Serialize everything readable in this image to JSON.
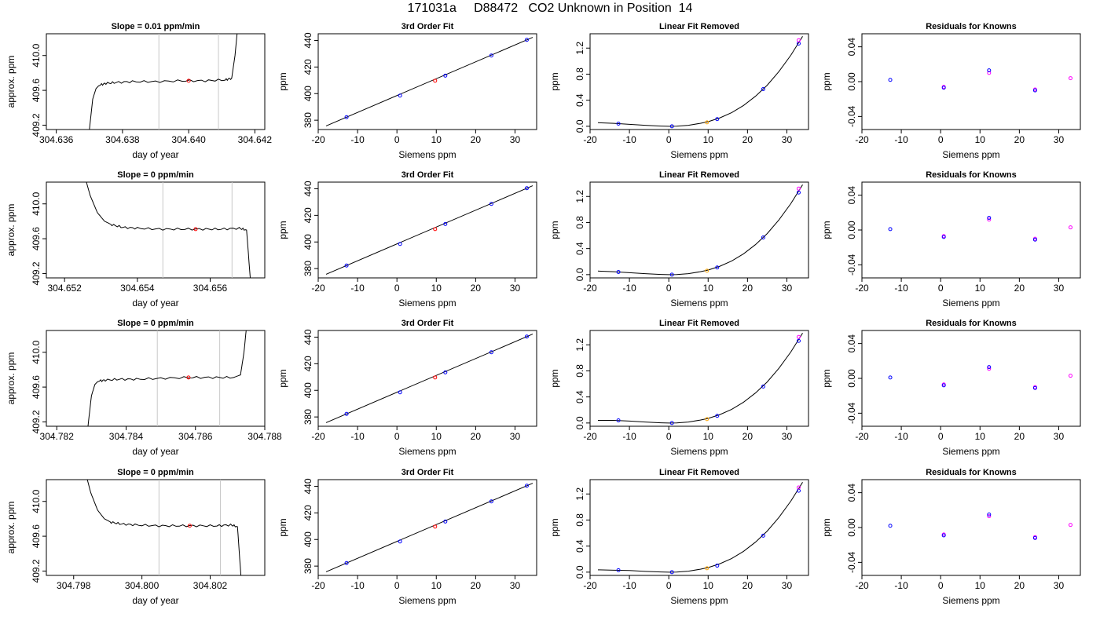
{
  "title": "171031a     D88472   CO2 Unknown in Position  14",
  "colors": {
    "knowns": "#0000ff",
    "knowns_alt": "#ff00ff",
    "unknown": "#ff0000",
    "unknown_alt": "#ffa500",
    "fit_line": "#000000",
    "window_lines": "#c8c8c8"
  },
  "chart_data": [
    {
      "row": 1,
      "type": "line",
      "title": "Slope =  0.01  ppm/min",
      "xlabel": "day of year",
      "ylabel": "approx. ppm",
      "xlim": [
        304.6357,
        304.6423
      ],
      "ylim": [
        409.15,
        410.25
      ],
      "xticks": [
        "304.636",
        "304.638",
        "304.640",
        "304.642"
      ],
      "yticks": [
        "409.2",
        "409.6",
        "410.0"
      ],
      "x": [
        304.637,
        304.6371,
        304.6372,
        304.6373,
        304.6375,
        304.6378,
        304.6383,
        304.639,
        304.6398,
        304.6405,
        304.6411,
        304.6413,
        304.6414,
        304.6415
      ],
      "y": [
        409.15,
        409.5,
        409.62,
        409.66,
        409.68,
        409.69,
        409.7,
        409.7,
        409.71,
        409.71,
        409.72,
        409.74,
        410.0,
        410.4
      ],
      "window": [
        304.6391,
        304.6409
      ],
      "point": {
        "x": 304.64,
        "y": 409.71
      }
    },
    {
      "row": 2,
      "type": "line",
      "title": "Slope =  0  ppm/min",
      "xlabel": "day of year",
      "ylabel": "approx. ppm",
      "xlim": [
        304.6515,
        304.6575
      ],
      "ylim": [
        409.15,
        410.25
      ],
      "xticks": [
        "304.652",
        "304.654",
        "304.656"
      ],
      "yticks": [
        "409.2",
        "409.6",
        "410.0"
      ],
      "x": [
        304.6525,
        304.6527,
        304.6529,
        304.6531,
        304.6533,
        304.6536,
        304.654,
        304.6546,
        304.6552,
        304.6558,
        304.6563,
        304.6568,
        304.657,
        304.6571
      ],
      "y": [
        410.4,
        410.1,
        409.9,
        409.8,
        409.76,
        409.73,
        409.72,
        409.71,
        409.71,
        409.71,
        409.71,
        409.72,
        409.7,
        409.15
      ],
      "window": [
        304.6547,
        304.6566
      ],
      "point": {
        "x": 304.6556,
        "y": 409.71
      }
    },
    {
      "row": 3,
      "type": "line",
      "title": "Slope =  0  ppm/min",
      "xlabel": "day of year",
      "ylabel": "approx. ppm",
      "xlim": [
        304.7817,
        304.788
      ],
      "ylim": [
        409.15,
        410.25
      ],
      "xticks": [
        "304.782",
        "304.784",
        "304.786",
        "304.788"
      ],
      "yticks": [
        "409.2",
        "409.6",
        "410.0"
      ],
      "x": [
        304.7829,
        304.783,
        304.7831,
        304.7832,
        304.7834,
        304.7838,
        304.7843,
        304.785,
        304.7858,
        304.7865,
        304.7871,
        304.7873,
        304.7874,
        304.7875
      ],
      "y": [
        409.15,
        409.5,
        409.63,
        409.67,
        409.68,
        409.69,
        409.69,
        409.7,
        409.71,
        409.71,
        409.71,
        409.74,
        410.0,
        410.4
      ],
      "window": [
        304.7849,
        304.7867
      ],
      "point": {
        "x": 304.7858,
        "y": 409.71
      }
    },
    {
      "row": 4,
      "type": "line",
      "title": "Slope =  0  ppm/min",
      "xlabel": "day of year",
      "ylabel": "approx. ppm",
      "xlim": [
        304.7972,
        304.8036
      ],
      "ylim": [
        409.15,
        410.25
      ],
      "xticks": [
        "304.798",
        "304.800",
        "304.802"
      ],
      "yticks": [
        "409.2",
        "409.6",
        "410.0"
      ],
      "x": [
        304.7983,
        304.7985,
        304.7987,
        304.7989,
        304.7991,
        304.7994,
        304.7998,
        304.8004,
        304.801,
        304.8016,
        304.8022,
        304.8026,
        304.8028,
        304.8029
      ],
      "y": [
        410.4,
        410.1,
        409.9,
        409.8,
        409.76,
        409.74,
        409.73,
        409.72,
        409.72,
        409.72,
        409.72,
        409.73,
        409.71,
        409.15
      ],
      "window": [
        304.8005,
        304.8023
      ],
      "point": {
        "x": 304.8014,
        "y": 409.72
      }
    },
    {
      "row": 1,
      "type": "scatter",
      "title": "3rd Order Fit",
      "xlabel": "Siemens ppm",
      "ylabel": "ppm",
      "xlim": [
        -20,
        35.5
      ],
      "ylim": [
        373,
        445
      ],
      "xticks": [
        "-20",
        "-10",
        "0",
        "10",
        "20",
        "30"
      ],
      "yticks": [
        "380",
        "400",
        "420",
        "440"
      ],
      "knowns": {
        "x": [
          -12.8,
          0.8,
          12.3,
          24.0,
          33.0
        ],
        "y": [
          382.3,
          398.5,
          413.5,
          428.6,
          440.4
        ]
      },
      "unknown": {
        "x": [
          9.7
        ],
        "y": [
          409.7
        ]
      },
      "fit_range": [
        -18,
        34.5
      ]
    },
    {
      "row": 2,
      "type": "scatter",
      "title": "3rd Order Fit",
      "xlabel": "Siemens ppm",
      "ylabel": "ppm",
      "xlim": [
        -20,
        35.5
      ],
      "ylim": [
        373,
        445
      ],
      "xticks": [
        "-20",
        "-10",
        "0",
        "10",
        "20",
        "30"
      ],
      "yticks": [
        "380",
        "400",
        "420",
        "440"
      ],
      "knowns": {
        "x": [
          -12.8,
          0.8,
          12.3,
          24.0,
          33.0
        ],
        "y": [
          382.3,
          398.5,
          413.5,
          428.6,
          440.4
        ]
      },
      "unknown": {
        "x": [
          9.7
        ],
        "y": [
          409.7
        ]
      },
      "fit_range": [
        -18,
        34.5
      ]
    },
    {
      "row": 3,
      "type": "scatter",
      "title": "3rd Order Fit",
      "xlabel": "Siemens ppm",
      "ylabel": "ppm",
      "xlim": [
        -20,
        35.5
      ],
      "ylim": [
        373,
        445
      ],
      "xticks": [
        "-20",
        "-10",
        "0",
        "10",
        "20",
        "30"
      ],
      "yticks": [
        "380",
        "400",
        "420",
        "440"
      ],
      "knowns": {
        "x": [
          -12.8,
          0.8,
          12.3,
          24.0,
          33.0
        ],
        "y": [
          382.3,
          398.5,
          413.5,
          428.6,
          440.4
        ]
      },
      "unknown": {
        "x": [
          9.7
        ],
        "y": [
          409.7
        ]
      },
      "fit_range": [
        -18,
        34.5
      ]
    },
    {
      "row": 4,
      "type": "scatter",
      "title": "3rd Order Fit",
      "xlabel": "Siemens ppm",
      "ylabel": "ppm",
      "xlim": [
        -20,
        35.5
      ],
      "ylim": [
        373,
        445
      ],
      "xticks": [
        "-20",
        "-10",
        "0",
        "10",
        "20",
        "30"
      ],
      "yticks": [
        "380",
        "400",
        "420",
        "440"
      ],
      "knowns": {
        "x": [
          -12.8,
          0.8,
          12.3,
          24.0,
          33.0
        ],
        "y": [
          382.3,
          398.5,
          413.5,
          428.6,
          440.4
        ]
      },
      "unknown": {
        "x": [
          9.7
        ],
        "y": [
          409.7
        ]
      },
      "fit_range": [
        -18,
        34.5
      ]
    },
    {
      "row": 1,
      "type": "scatter",
      "title": "Linear Fit Removed",
      "xlabel": "Siemens ppm",
      "ylabel": "ppm",
      "xlim": [
        -20,
        35.5
      ],
      "ylim": [
        -0.05,
        1.42
      ],
      "xticks": [
        "-20",
        "-10",
        "0",
        "10",
        "20",
        "30"
      ],
      "yticks": [
        "0.0",
        "0.4",
        "0.8",
        "1.2"
      ],
      "knowns": {
        "x": [
          -12.8,
          0.8,
          12.3,
          24.0,
          33.0,
          33.0
        ],
        "y": [
          0.04,
          0.0,
          0.11,
          0.57,
          1.27,
          1.32
        ]
      },
      "unknown": {
        "x": [
          9.7
        ],
        "y": [
          0.06
        ]
      },
      "curve": {
        "x": [
          -18,
          -14,
          -10,
          -6,
          -2,
          0,
          2,
          5,
          8,
          10,
          13,
          16,
          19,
          22,
          25,
          28,
          31,
          34
        ],
        "y": [
          0.055,
          0.045,
          0.03,
          0.015,
          0.003,
          0.0,
          0.002,
          0.015,
          0.045,
          0.07,
          0.13,
          0.21,
          0.32,
          0.46,
          0.63,
          0.84,
          1.09,
          1.38
        ]
      }
    },
    {
      "row": 2,
      "type": "scatter",
      "title": "Linear Fit Removed",
      "xlabel": "Siemens ppm",
      "ylabel": "ppm",
      "xlim": [
        -20,
        35.5
      ],
      "ylim": [
        -0.05,
        1.42
      ],
      "xticks": [
        "-20",
        "-10",
        "0",
        "10",
        "20",
        "30"
      ],
      "yticks": [
        "0.0",
        "0.4",
        "0.8",
        "1.2"
      ],
      "knowns": {
        "x": [
          -12.8,
          0.8,
          12.3,
          24.0,
          33.0,
          33.0
        ],
        "y": [
          0.04,
          0.0,
          0.11,
          0.57,
          1.26,
          1.32
        ]
      },
      "unknown": {
        "x": [
          9.7
        ],
        "y": [
          0.06
        ]
      },
      "curve": {
        "x": [
          -18,
          -14,
          -10,
          -6,
          -2,
          0,
          2,
          5,
          8,
          10,
          13,
          16,
          19,
          22,
          25,
          28,
          31,
          34
        ],
        "y": [
          0.055,
          0.045,
          0.03,
          0.015,
          0.003,
          0.0,
          0.002,
          0.015,
          0.045,
          0.07,
          0.13,
          0.21,
          0.32,
          0.46,
          0.63,
          0.84,
          1.09,
          1.38
        ]
      }
    },
    {
      "row": 3,
      "type": "scatter",
      "title": "Linear Fit Removed",
      "xlabel": "Siemens ppm",
      "ylabel": "ppm",
      "xlim": [
        -20,
        35.5
      ],
      "ylim": [
        -0.05,
        1.42
      ],
      "xticks": [
        "-20",
        "-10",
        "0",
        "10",
        "20",
        "30"
      ],
      "yticks": [
        "0.0",
        "0.4",
        "0.8",
        "1.2"
      ],
      "knowns": {
        "x": [
          -12.8,
          0.8,
          12.3,
          24.0,
          33.0,
          33.0
        ],
        "y": [
          0.04,
          0.0,
          0.11,
          0.56,
          1.26,
          1.32
        ]
      },
      "unknown": {
        "x": [
          9.7
        ],
        "y": [
          0.06
        ]
      },
      "curve": {
        "x": [
          -18,
          -14,
          -10,
          -6,
          -2,
          0,
          2,
          5,
          8,
          10,
          13,
          16,
          19,
          22,
          25,
          28,
          31,
          34
        ],
        "y": [
          0.04,
          0.04,
          0.03,
          0.015,
          0.003,
          0.0,
          0.002,
          0.015,
          0.045,
          0.07,
          0.13,
          0.21,
          0.32,
          0.46,
          0.63,
          0.84,
          1.09,
          1.38
        ]
      }
    },
    {
      "row": 4,
      "type": "scatter",
      "title": "Linear Fit Removed",
      "xlabel": "Siemens ppm",
      "ylabel": "ppm",
      "xlim": [
        -20,
        35.5
      ],
      "ylim": [
        -0.05,
        1.42
      ],
      "xticks": [
        "-20",
        "-10",
        "0",
        "10",
        "20",
        "30"
      ],
      "yticks": [
        "0.0",
        "0.4",
        "0.8",
        "1.2"
      ],
      "knowns": {
        "x": [
          -12.8,
          0.8,
          12.3,
          24.0,
          33.0,
          33.0
        ],
        "y": [
          0.03,
          0.0,
          0.1,
          0.56,
          1.25,
          1.3
        ]
      },
      "unknown": {
        "x": [
          9.7
        ],
        "y": [
          0.06
        ]
      },
      "curve": {
        "x": [
          -18,
          -14,
          -10,
          -6,
          -2,
          0,
          2,
          5,
          8,
          10,
          13,
          16,
          19,
          22,
          25,
          28,
          31,
          34
        ],
        "y": [
          0.035,
          0.03,
          0.025,
          0.012,
          0.003,
          0.0,
          0.002,
          0.015,
          0.045,
          0.07,
          0.13,
          0.21,
          0.32,
          0.46,
          0.63,
          0.84,
          1.09,
          1.38
        ]
      }
    },
    {
      "row": 1,
      "type": "scatter",
      "title": "Residuals for Knowns",
      "xlabel": "Siemens ppm",
      "ylabel": "ppm",
      "xlim": [
        -20,
        35.5
      ],
      "ylim": [
        -0.055,
        0.055
      ],
      "xticks": [
        "-20",
        "-10",
        "0",
        "10",
        "20",
        "30"
      ],
      "yticks": [
        "-0.04",
        "0.00",
        "0.04"
      ],
      "knowns": {
        "x": [
          -12.8,
          0.8,
          0.8,
          12.3,
          12.3,
          24.0,
          24.0,
          33.0
        ],
        "y": [
          0.002,
          -0.006,
          -0.007,
          0.01,
          0.013,
          -0.009,
          -0.01,
          0.004
        ]
      }
    },
    {
      "row": 2,
      "type": "scatter",
      "title": "Residuals for Knowns",
      "xlabel": "Siemens ppm",
      "ylabel": "ppm",
      "xlim": [
        -20,
        35.5
      ],
      "ylim": [
        -0.055,
        0.055
      ],
      "xticks": [
        "-20",
        "-10",
        "0",
        "10",
        "20",
        "30"
      ],
      "yticks": [
        "-0.04",
        "0.00",
        "0.04"
      ],
      "knowns": {
        "x": [
          -12.8,
          0.8,
          0.8,
          12.3,
          12.3,
          24.0,
          24.0,
          33.0
        ],
        "y": [
          0.001,
          -0.007,
          -0.008,
          0.012,
          0.014,
          -0.01,
          -0.011,
          0.003
        ]
      }
    },
    {
      "row": 3,
      "type": "scatter",
      "title": "Residuals for Knowns",
      "xlabel": "Siemens ppm",
      "ylabel": "ppm",
      "xlim": [
        -20,
        35.5
      ],
      "ylim": [
        -0.055,
        0.055
      ],
      "xticks": [
        "-20",
        "-10",
        "0",
        "10",
        "20",
        "30"
      ],
      "yticks": [
        "-0.04",
        "0.00",
        "0.04"
      ],
      "knowns": {
        "x": [
          -12.8,
          0.8,
          0.8,
          12.3,
          12.3,
          24.0,
          24.0,
          33.0
        ],
        "y": [
          0.001,
          -0.007,
          -0.008,
          0.011,
          0.013,
          -0.01,
          -0.011,
          0.003
        ]
      }
    },
    {
      "row": 4,
      "type": "scatter",
      "title": "Residuals for Knowns",
      "xlabel": "Siemens ppm",
      "ylabel": "ppm",
      "xlim": [
        -20,
        35.5
      ],
      "ylim": [
        -0.055,
        0.055
      ],
      "xticks": [
        "-20",
        "-10",
        "0",
        "10",
        "20",
        "30"
      ],
      "yticks": [
        "-0.04",
        "0.00",
        "0.04"
      ],
      "knowns": {
        "x": [
          -12.8,
          0.8,
          0.8,
          12.3,
          12.3,
          24.0,
          24.0,
          33.0
        ],
        "y": [
          0.002,
          -0.008,
          -0.009,
          0.013,
          0.015,
          -0.011,
          -0.012,
          0.003
        ]
      }
    }
  ]
}
